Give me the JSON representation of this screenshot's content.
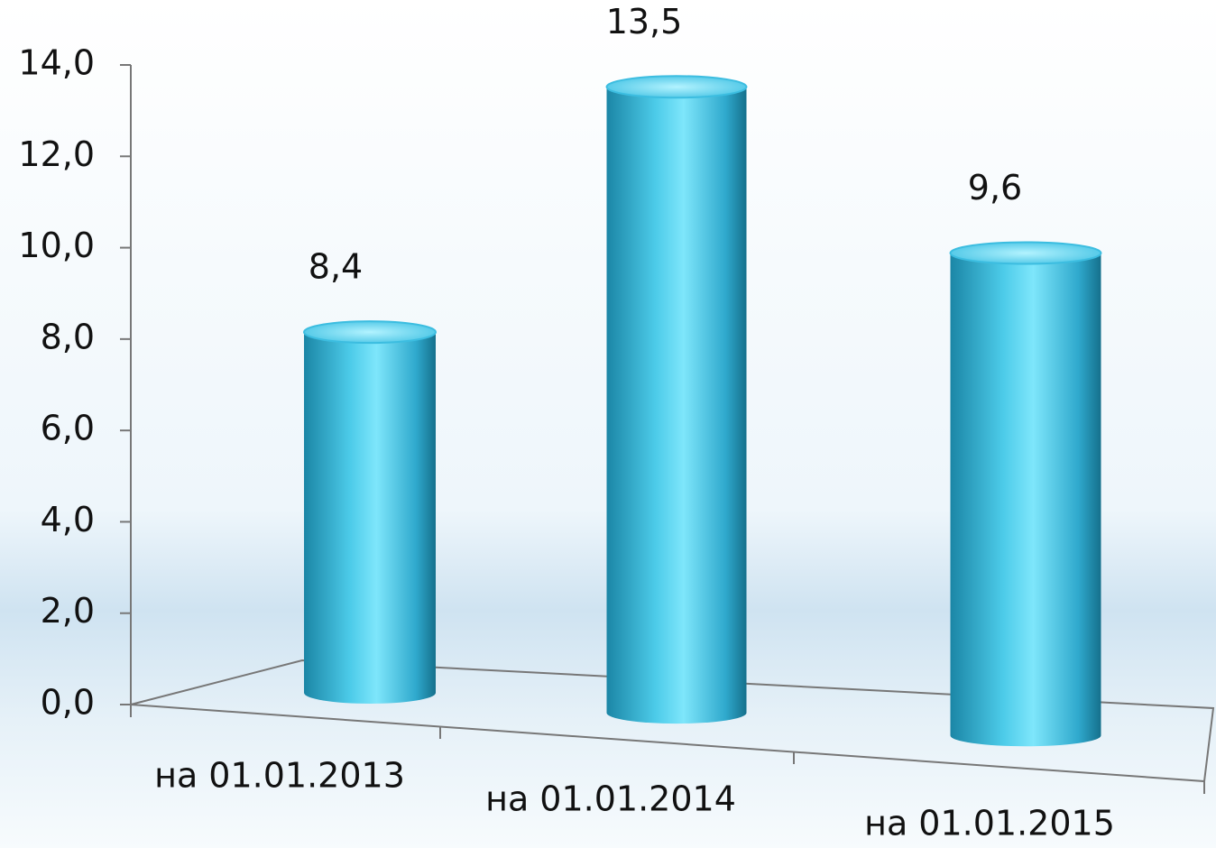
{
  "chart_data": {
    "type": "bar3d",
    "categories": [
      "на 01.01.2013",
      "на 01.01.2014",
      "на 01.01.2015"
    ],
    "values": [
      8.4,
      13.5,
      9.6
    ],
    "value_labels": [
      "8,4",
      "13,5",
      "9,6"
    ],
    "color": "#3cbde0",
    "ylim": [
      0,
      14
    ],
    "yticks": [
      {
        "value": 0,
        "label": "0,0"
      },
      {
        "value": 2,
        "label": "2,0"
      },
      {
        "value": 4,
        "label": "4,0"
      },
      {
        "value": 6,
        "label": "6,0"
      },
      {
        "value": 8,
        "label": "8,0"
      },
      {
        "value": 10,
        "label": "10,0"
      },
      {
        "value": 12,
        "label": "12,0"
      },
      {
        "value": 14,
        "label": "14,0"
      }
    ],
    "grid": false
  }
}
